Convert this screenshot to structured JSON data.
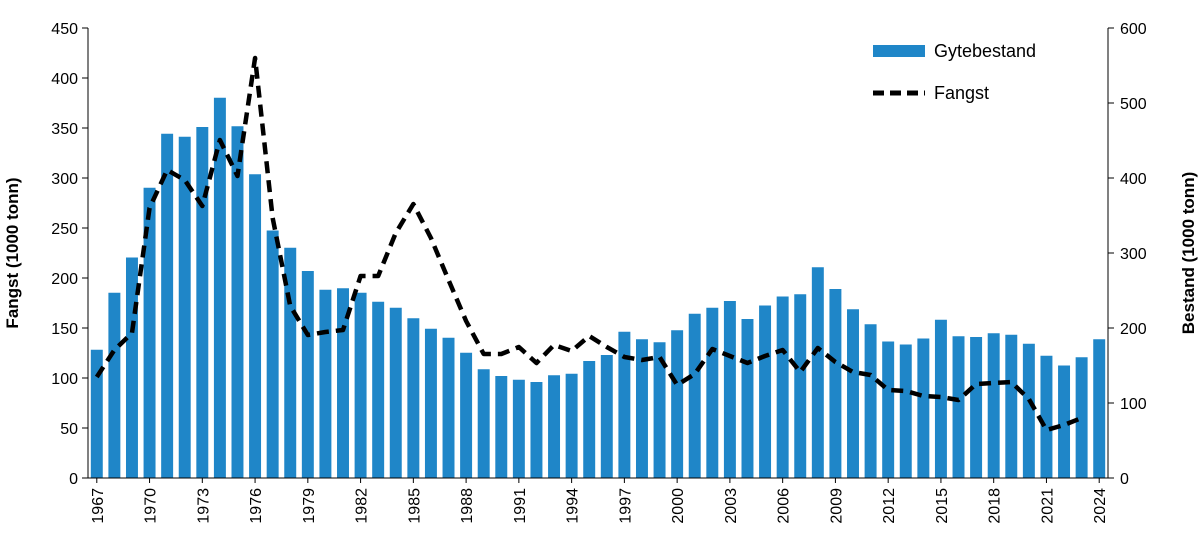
{
  "chart_data": {
    "type": "bar+line",
    "title": "",
    "colors": {
      "bar": "#1f86c8",
      "line": "#000000",
      "axis": "#000000"
    },
    "left_axis": {
      "label": "Fangst (1000 tonn)",
      "range": [
        0,
        450
      ],
      "ticks": [
        "0",
        "50",
        "100",
        "150",
        "200",
        "250",
        "300",
        "350",
        "400",
        "450"
      ]
    },
    "right_axis": {
      "label": "Bestand (1000 tonn)",
      "range": [
        0,
        600
      ],
      "ticks": [
        "0",
        "100",
        "200",
        "300",
        "400",
        "500",
        "600"
      ]
    },
    "x_tick_labels": [
      "1967",
      "1970",
      "1973",
      "1976",
      "1979",
      "1982",
      "1985",
      "1988",
      "1991",
      "1994",
      "1997",
      "2000",
      "2003",
      "2006",
      "2009",
      "2012",
      "2015",
      "2018",
      "2021",
      "2024"
    ],
    "years": [
      1967,
      1968,
      1969,
      1970,
      1971,
      1972,
      1973,
      1974,
      1975,
      1976,
      1977,
      1978,
      1979,
      1980,
      1981,
      1982,
      1983,
      1984,
      1985,
      1986,
      1987,
      1988,
      1989,
      1990,
      1991,
      1992,
      1993,
      1994,
      1995,
      1996,
      1997,
      1998,
      1999,
      2000,
      2001,
      2002,
      2003,
      2004,
      2005,
      2006,
      2007,
      2008,
      2009,
      2010,
      2011,
      2012,
      2013,
      2014,
      2015,
      2016,
      2017,
      2018,
      2019,
      2020,
      2021,
      2022,
      2023,
      2024
    ],
    "series": [
      {
        "name": "Gytebestand",
        "kind": "bar",
        "axis": "right",
        "values": [
          171,
          247,
          294,
          387,
          459,
          455,
          468,
          507,
          469,
          405,
          330,
          307,
          276,
          251,
          253,
          247,
          235,
          227,
          213,
          199,
          187,
          167,
          145,
          136,
          131,
          128,
          137,
          139,
          156,
          164,
          195,
          185,
          181,
          197,
          219,
          227,
          236,
          212,
          230,
          242,
          245,
          281,
          252,
          225,
          205,
          182,
          178,
          186,
          211,
          189,
          188,
          193,
          191,
          179,
          163,
          150,
          161,
          185
        ]
      },
      {
        "name": "Fangst",
        "kind": "dashed-line",
        "axis": "left",
        "years": [
          1967,
          1968,
          1969,
          1970,
          1971,
          1972,
          1973,
          1974,
          1975,
          1976,
          1977,
          1978,
          1979,
          1980,
          1981,
          1982,
          1983,
          1984,
          1985,
          1986,
          1987,
          1988,
          1989,
          1990,
          1991,
          1992,
          1993,
          1994,
          1995,
          1996,
          1997,
          1998,
          1999,
          2000,
          2001,
          2002,
          2003,
          2004,
          2005,
          2006,
          2007,
          2008,
          2009,
          2010,
          2011,
          2012,
          2013,
          2014,
          2015,
          2016,
          2017,
          2018,
          2019,
          2020,
          2021,
          2022,
          2023
        ],
        "values": [
          101,
          128,
          145,
          270,
          308,
          298,
          272,
          338,
          302,
          420,
          260,
          172,
          143,
          146,
          148,
          202,
          202,
          245,
          274,
          240,
          198,
          157,
          124,
          124,
          131,
          115,
          133,
          127,
          142,
          131,
          121,
          118,
          121,
          93,
          104,
          129,
          122,
          115,
          122,
          128,
          106,
          130,
          116,
          106,
          103,
          88,
          87,
          82,
          81,
          78,
          94,
          95,
          96,
          79,
          48,
          53,
          60
        ]
      }
    ],
    "legend": {
      "position": "top-right",
      "entries": [
        {
          "label": "Gytebestand"
        },
        {
          "label": "Fangst"
        }
      ]
    }
  }
}
